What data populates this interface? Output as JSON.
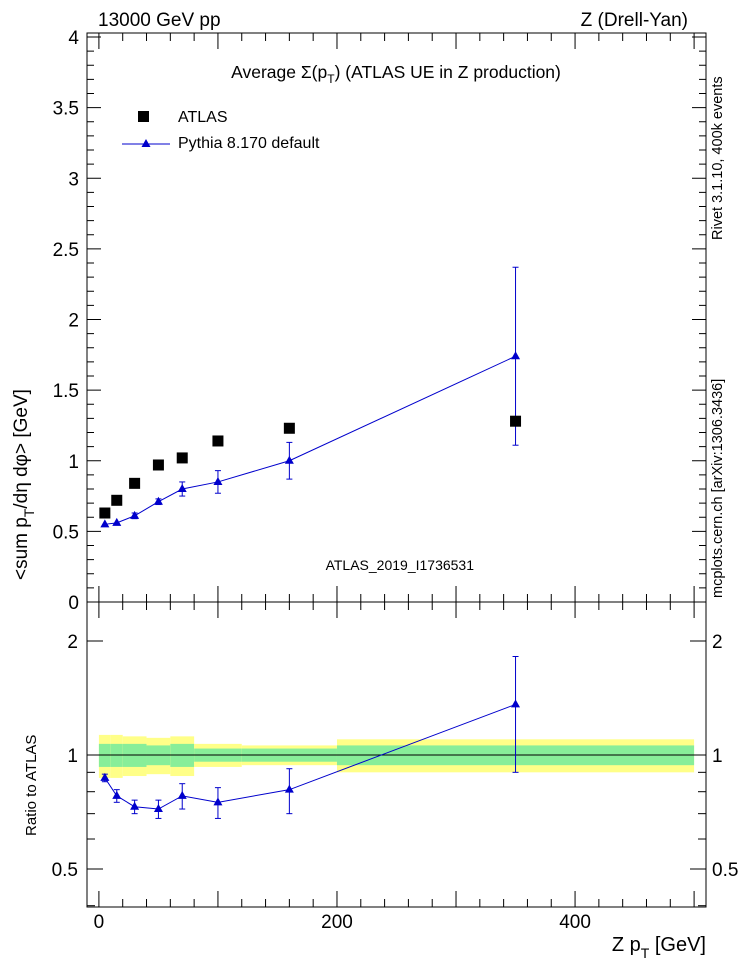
{
  "header": {
    "energy": "13000 GeV pp",
    "process": "Z (Drell-Yan)"
  },
  "side_labels": {
    "rivet": "Rivet 3.1.10,  400k events",
    "mcplots": "mcplots.cern.ch [arXiv:1306.3436]"
  },
  "colors": {
    "data": "#000000",
    "mc": "#0000cc",
    "band_outer": "#ffff88",
    "band_inner": "#88ee99",
    "watermark": "#999999"
  },
  "chart_data": [
    {
      "type": "scatter",
      "title": "Average",
      "title_sigma": "Σ(p",
      "title_sigma_sub": "T",
      "title_rest": ") (ATLAS UE in Z production)",
      "ylabel": "<sum p_T/dη dφ> [GeV]",
      "ylabel_parts": [
        "<sum p",
        "T",
        "/dη dφ> [GeV]"
      ],
      "xlim": [
        -10,
        510
      ],
      "ylim": [
        0,
        4
      ],
      "yticks": [
        0,
        0.5,
        1,
        1.5,
        2,
        2.5,
        3,
        3.5,
        4
      ],
      "ytick_labels": [
        "0",
        "0.5",
        "1",
        "1.5",
        "2",
        "2.5",
        "3",
        "3.5",
        "4"
      ],
      "watermark": "ATLAS_2019_I1736531",
      "legend": [
        "ATLAS",
        "Pythia 8.170 default"
      ],
      "series": [
        {
          "name": "ATLAS",
          "marker": "square",
          "x": [
            5,
            15,
            30,
            50,
            70,
            100,
            160,
            350
          ],
          "y": [
            0.63,
            0.72,
            0.84,
            0.97,
            1.02,
            1.14,
            1.23,
            1.28
          ]
        },
        {
          "name": "Pythia 8.170 default",
          "marker": "triangle",
          "x": [
            5,
            15,
            30,
            50,
            70,
            100,
            160,
            350
          ],
          "y": [
            0.55,
            0.56,
            0.61,
            0.71,
            0.8,
            0.85,
            1.0,
            1.74
          ],
          "yerr": [
            0.01,
            0.01,
            0.02,
            0.02,
            0.05,
            0.08,
            0.13,
            0.63
          ]
        }
      ]
    },
    {
      "type": "line",
      "ylabel": "Ratio to ATLAS",
      "xlabel": "Z p_T [GeV]",
      "xlabel_parts": [
        "Z p",
        "T",
        " [GeV]"
      ],
      "xlim": [
        -10,
        510
      ],
      "ylim": [
        0.35,
        2.35
      ],
      "xticks": [
        0,
        200,
        400
      ],
      "xtick_labels": [
        "0",
        "200",
        "400"
      ],
      "yticks": [
        0.5,
        1,
        2
      ],
      "ytick_labels": [
        "0.5",
        "1",
        "2"
      ],
      "band": {
        "edges": [
          0,
          10,
          20,
          40,
          60,
          80,
          120,
          200,
          500
        ],
        "outer_half": [
          0.13,
          0.13,
          0.12,
          0.11,
          0.12,
          0.07,
          0.06,
          0.1
        ],
        "inner_half": [
          0.07,
          0.07,
          0.07,
          0.06,
          0.07,
          0.04,
          0.04,
          0.06
        ]
      },
      "series": [
        {
          "name": "Pythia 8.170 default",
          "x": [
            5,
            15,
            30,
            50,
            70,
            100,
            160,
            350
          ],
          "y": [
            0.87,
            0.78,
            0.73,
            0.72,
            0.78,
            0.75,
            0.81,
            1.36
          ],
          "yerr": [
            0.02,
            0.03,
            0.03,
            0.04,
            0.06,
            0.07,
            0.11,
            0.46
          ]
        }
      ]
    }
  ]
}
